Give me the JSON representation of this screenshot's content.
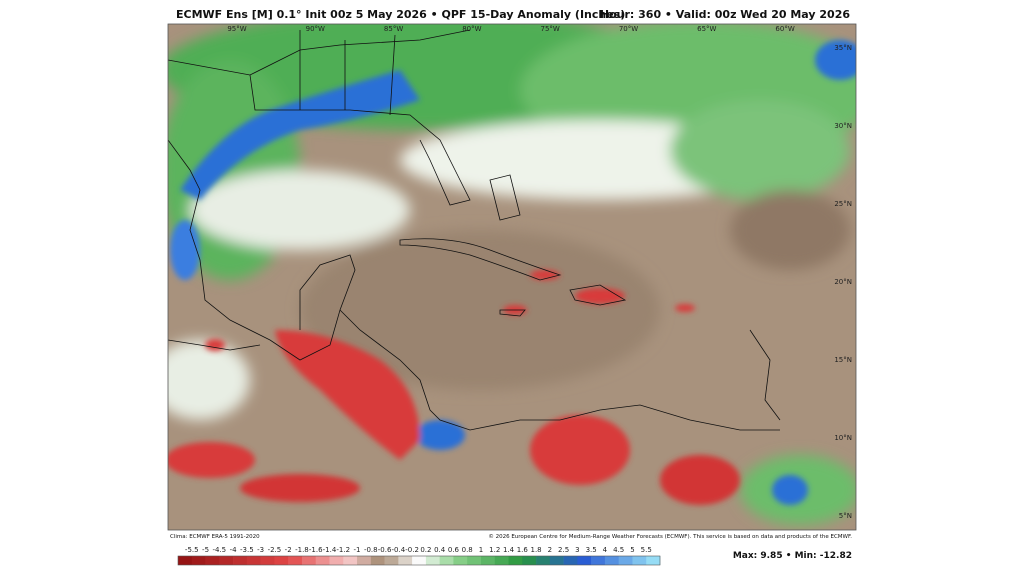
{
  "header": {
    "title": "ECMWF Ens [M] 0.1° Init 00z 5 May 2026 • QPF 15-Day Anomaly (Inches)",
    "valid": "Hour: 360 • Valid: 00z Wed 20 May 2026"
  },
  "map": {
    "longitudes": [
      "95°W",
      "90°W",
      "85°W",
      "80°W",
      "75°W",
      "70°W",
      "65°W",
      "60°W"
    ],
    "latitudes": [
      "35°N",
      "30°N",
      "25°N",
      "20°N",
      "15°N",
      "10°N",
      "5°N"
    ]
  },
  "footer": {
    "climo": "Clima: ECMWF ERA-5 1991-2020",
    "copyright": "© 2026 European Centre for Medium-Range Weather Forecasts (ECMWF). This service is based on data and products of the ECMWF."
  },
  "colorbar": {
    "ticks": [
      -5.5,
      -5,
      -4.5,
      -4,
      -3.5,
      -3,
      -2.5,
      -2,
      -1.8,
      -1.6,
      -1.4,
      -1.2,
      -1,
      -0.8,
      -0.6,
      -0.4,
      -0.2,
      0.2,
      0.4,
      0.6,
      0.8,
      1,
      1.2,
      1.4,
      1.6,
      1.8,
      2,
      2.5,
      3,
      3.5,
      4,
      4.5,
      5,
      5.5
    ],
    "extremes": "Max: 9.85 • Min: -12.82"
  }
}
